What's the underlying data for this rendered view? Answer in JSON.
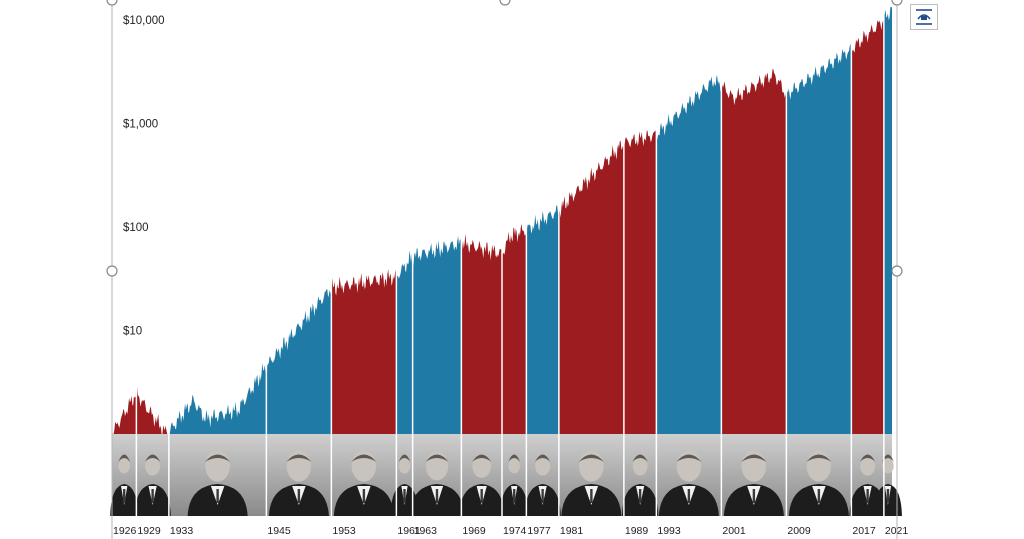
{
  "chart_data": {
    "type": "area",
    "scale": "log",
    "ylim": [
      1,
      14000
    ],
    "xlim": [
      1926,
      2022
    ],
    "y_ticks": [
      {
        "value": 10,
        "label": "$10"
      },
      {
        "value": 100,
        "label": "$100"
      },
      {
        "value": 1000,
        "label": "$1,000"
      },
      {
        "value": 10000,
        "label": "$10,000"
      }
    ],
    "terms": [
      {
        "start": 1926,
        "end": 1929,
        "party": "R",
        "label": "1926"
      },
      {
        "start": 1929,
        "end": 1933,
        "party": "R",
        "label": "1929"
      },
      {
        "start": 1933,
        "end": 1945,
        "party": "D",
        "label": "1933"
      },
      {
        "start": 1945,
        "end": 1953,
        "party": "D",
        "label": "1945"
      },
      {
        "start": 1953,
        "end": 1961,
        "party": "R",
        "label": "1953"
      },
      {
        "start": 1961,
        "end": 1963,
        "party": "D",
        "label": "1961"
      },
      {
        "start": 1963,
        "end": 1969,
        "party": "D",
        "label": "1963"
      },
      {
        "start": 1969,
        "end": 1974,
        "party": "R",
        "label": "1969"
      },
      {
        "start": 1974,
        "end": 1977,
        "party": "R",
        "label": "1974"
      },
      {
        "start": 1977,
        "end": 1981,
        "party": "D",
        "label": "1977"
      },
      {
        "start": 1981,
        "end": 1989,
        "party": "R",
        "label": "1981"
      },
      {
        "start": 1989,
        "end": 1993,
        "party": "R",
        "label": "1989"
      },
      {
        "start": 1993,
        "end": 2001,
        "party": "D",
        "label": "1993"
      },
      {
        "start": 2001,
        "end": 2009,
        "party": "R",
        "label": "2001"
      },
      {
        "start": 2009,
        "end": 2017,
        "party": "D",
        "label": "2009"
      },
      {
        "start": 2017,
        "end": 2021,
        "party": "R",
        "label": "2017"
      },
      {
        "start": 2021,
        "end": 2022,
        "party": "D",
        "label": "2021"
      }
    ],
    "x": [
      1926,
      1929,
      1929.8,
      1932.5,
      1933,
      1936,
      1937.5,
      1941.5,
      1945,
      1953,
      1961,
      1963,
      1969,
      1974,
      1975,
      1977,
      1981,
      1989,
      1993,
      2000,
      2001,
      2002.5,
      2007.5,
      2009,
      2017,
      2021,
      2022
    ],
    "values": [
      1,
      2.5,
      2.0,
      1.05,
      1.05,
      2.1,
      1.4,
      1.7,
      4.5,
      26,
      33,
      52,
      70,
      55,
      82,
      94,
      145,
      650,
      780,
      2600,
      2350,
      1750,
      3000,
      1900,
      5200,
      10000,
      13000
    ]
  },
  "colors": {
    "republican": "#9d1c20",
    "democrat": "#1f7aa6"
  }
}
